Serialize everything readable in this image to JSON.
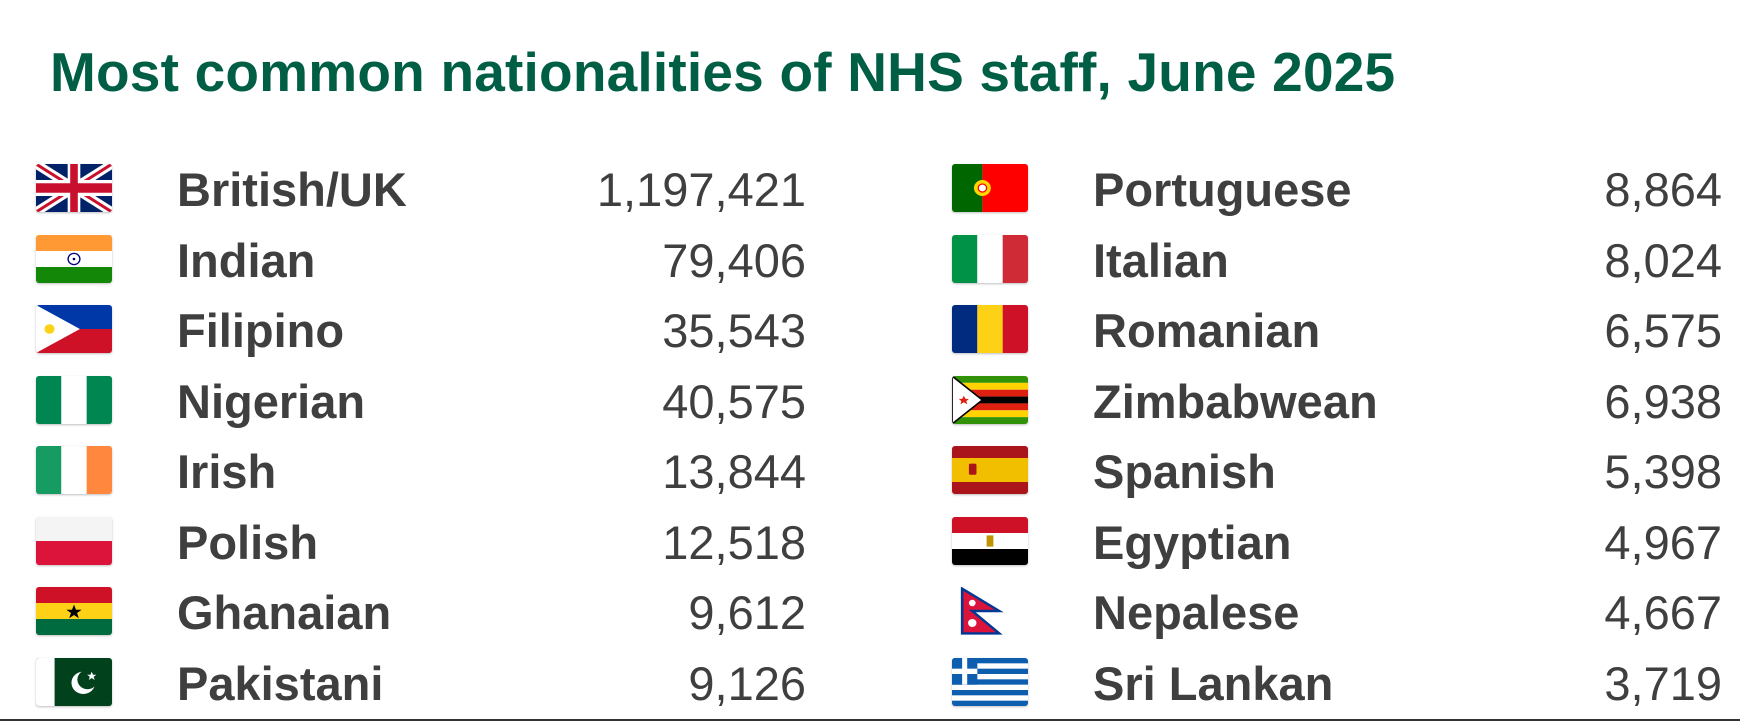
{
  "chart_data": {
    "type": "table",
    "title": "Most common nationalities of NHS staff, June 2025",
    "columns": [
      [
        {
          "nationality": "British/UK",
          "staff": "1,197,421",
          "flag_icon": "uk-flag-icon"
        },
        {
          "nationality": "Indian",
          "staff": "79,406",
          "flag_icon": "india-flag-icon"
        },
        {
          "nationality": "Filipino",
          "staff": "35,543",
          "flag_icon": "philippines-flag-icon"
        },
        {
          "nationality": "Nigerian",
          "staff": "40,575",
          "flag_icon": "nigeria-flag-icon"
        },
        {
          "nationality": "Irish",
          "staff": "13,844",
          "flag_icon": "ireland-flag-icon"
        },
        {
          "nationality": "Polish",
          "staff": "12,518",
          "flag_icon": "poland-flag-icon"
        },
        {
          "nationality": "Ghanaian",
          "staff": "9,612",
          "flag_icon": "ghana-flag-icon"
        },
        {
          "nationality": "Pakistani",
          "staff": "9,126",
          "flag_icon": "pakistan-flag-icon"
        }
      ],
      [
        {
          "nationality": "Portuguese",
          "staff": "8,864",
          "flag_icon": "portugal-flag-icon"
        },
        {
          "nationality": "Italian",
          "staff": "8,024",
          "flag_icon": "italy-flag-icon"
        },
        {
          "nationality": "Romanian",
          "staff": "6,575",
          "flag_icon": "romania-flag-icon"
        },
        {
          "nationality": "Zimbabwean",
          "staff": "6,938",
          "flag_icon": "zimbabwe-flag-icon"
        },
        {
          "nationality": "Spanish",
          "staff": "5,398",
          "flag_icon": "spain-flag-icon"
        },
        {
          "nationality": "Egyptian",
          "staff": "4,967",
          "flag_icon": "egypt-flag-icon"
        },
        {
          "nationality": "Nepalese",
          "staff": "4,667",
          "flag_icon": "nepal-flag-icon"
        },
        {
          "nationality": "Sri Lankan",
          "staff": "3,719",
          "flag_icon": "sri-lanka-flag-icon"
        }
      ]
    ]
  },
  "colors": {
    "title": "#005e45",
    "text": "#3f3f3f",
    "background": "#ffffff"
  }
}
